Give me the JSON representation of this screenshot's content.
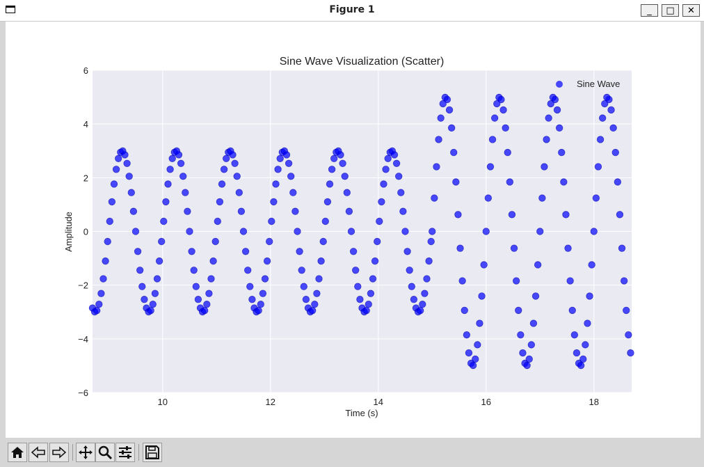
{
  "window": {
    "title": "Figure 1",
    "minimize_label": "_",
    "maximize_label": "□",
    "close_label": "✕"
  },
  "toolbar": {
    "items": [
      {
        "icon": "home-icon"
      },
      {
        "icon": "back-arrow-icon"
      },
      {
        "icon": "forward-arrow-icon"
      },
      {
        "icon": "pan-move-icon"
      },
      {
        "icon": "zoom-magnifier-icon"
      },
      {
        "icon": "configure-subplots-icon"
      },
      {
        "icon": "save-floppy-icon"
      }
    ]
  },
  "chart_data": {
    "type": "scatter",
    "title": "Sine Wave Visualization (Scatter)",
    "xlabel": "Time (s)",
    "ylabel": "Amplitude",
    "xlim": [
      8.7,
      18.7
    ],
    "ylim": [
      -6,
      6
    ],
    "xticks": [
      10,
      12,
      14,
      16,
      18
    ],
    "yticks": [
      -6,
      -4,
      -2,
      0,
      2,
      4,
      6
    ],
    "grid": true,
    "legend": "top-right",
    "background_color": "#eaeaf2",
    "series": [
      {
        "name": "Sine Wave",
        "color": "#0000ff",
        "opacity": 0.7,
        "segments": [
          {
            "x_start": 8.7,
            "x_end": 15.0,
            "step": 0.04,
            "amplitude": 3,
            "frequency_hz": 1,
            "phase_peak_at": 9.25
          },
          {
            "x_start": 15.0,
            "x_end": 18.7,
            "step": 0.04,
            "amplitude": 5,
            "frequency_hz": 1,
            "phase_peak_at": 15.25
          }
        ]
      }
    ]
  }
}
